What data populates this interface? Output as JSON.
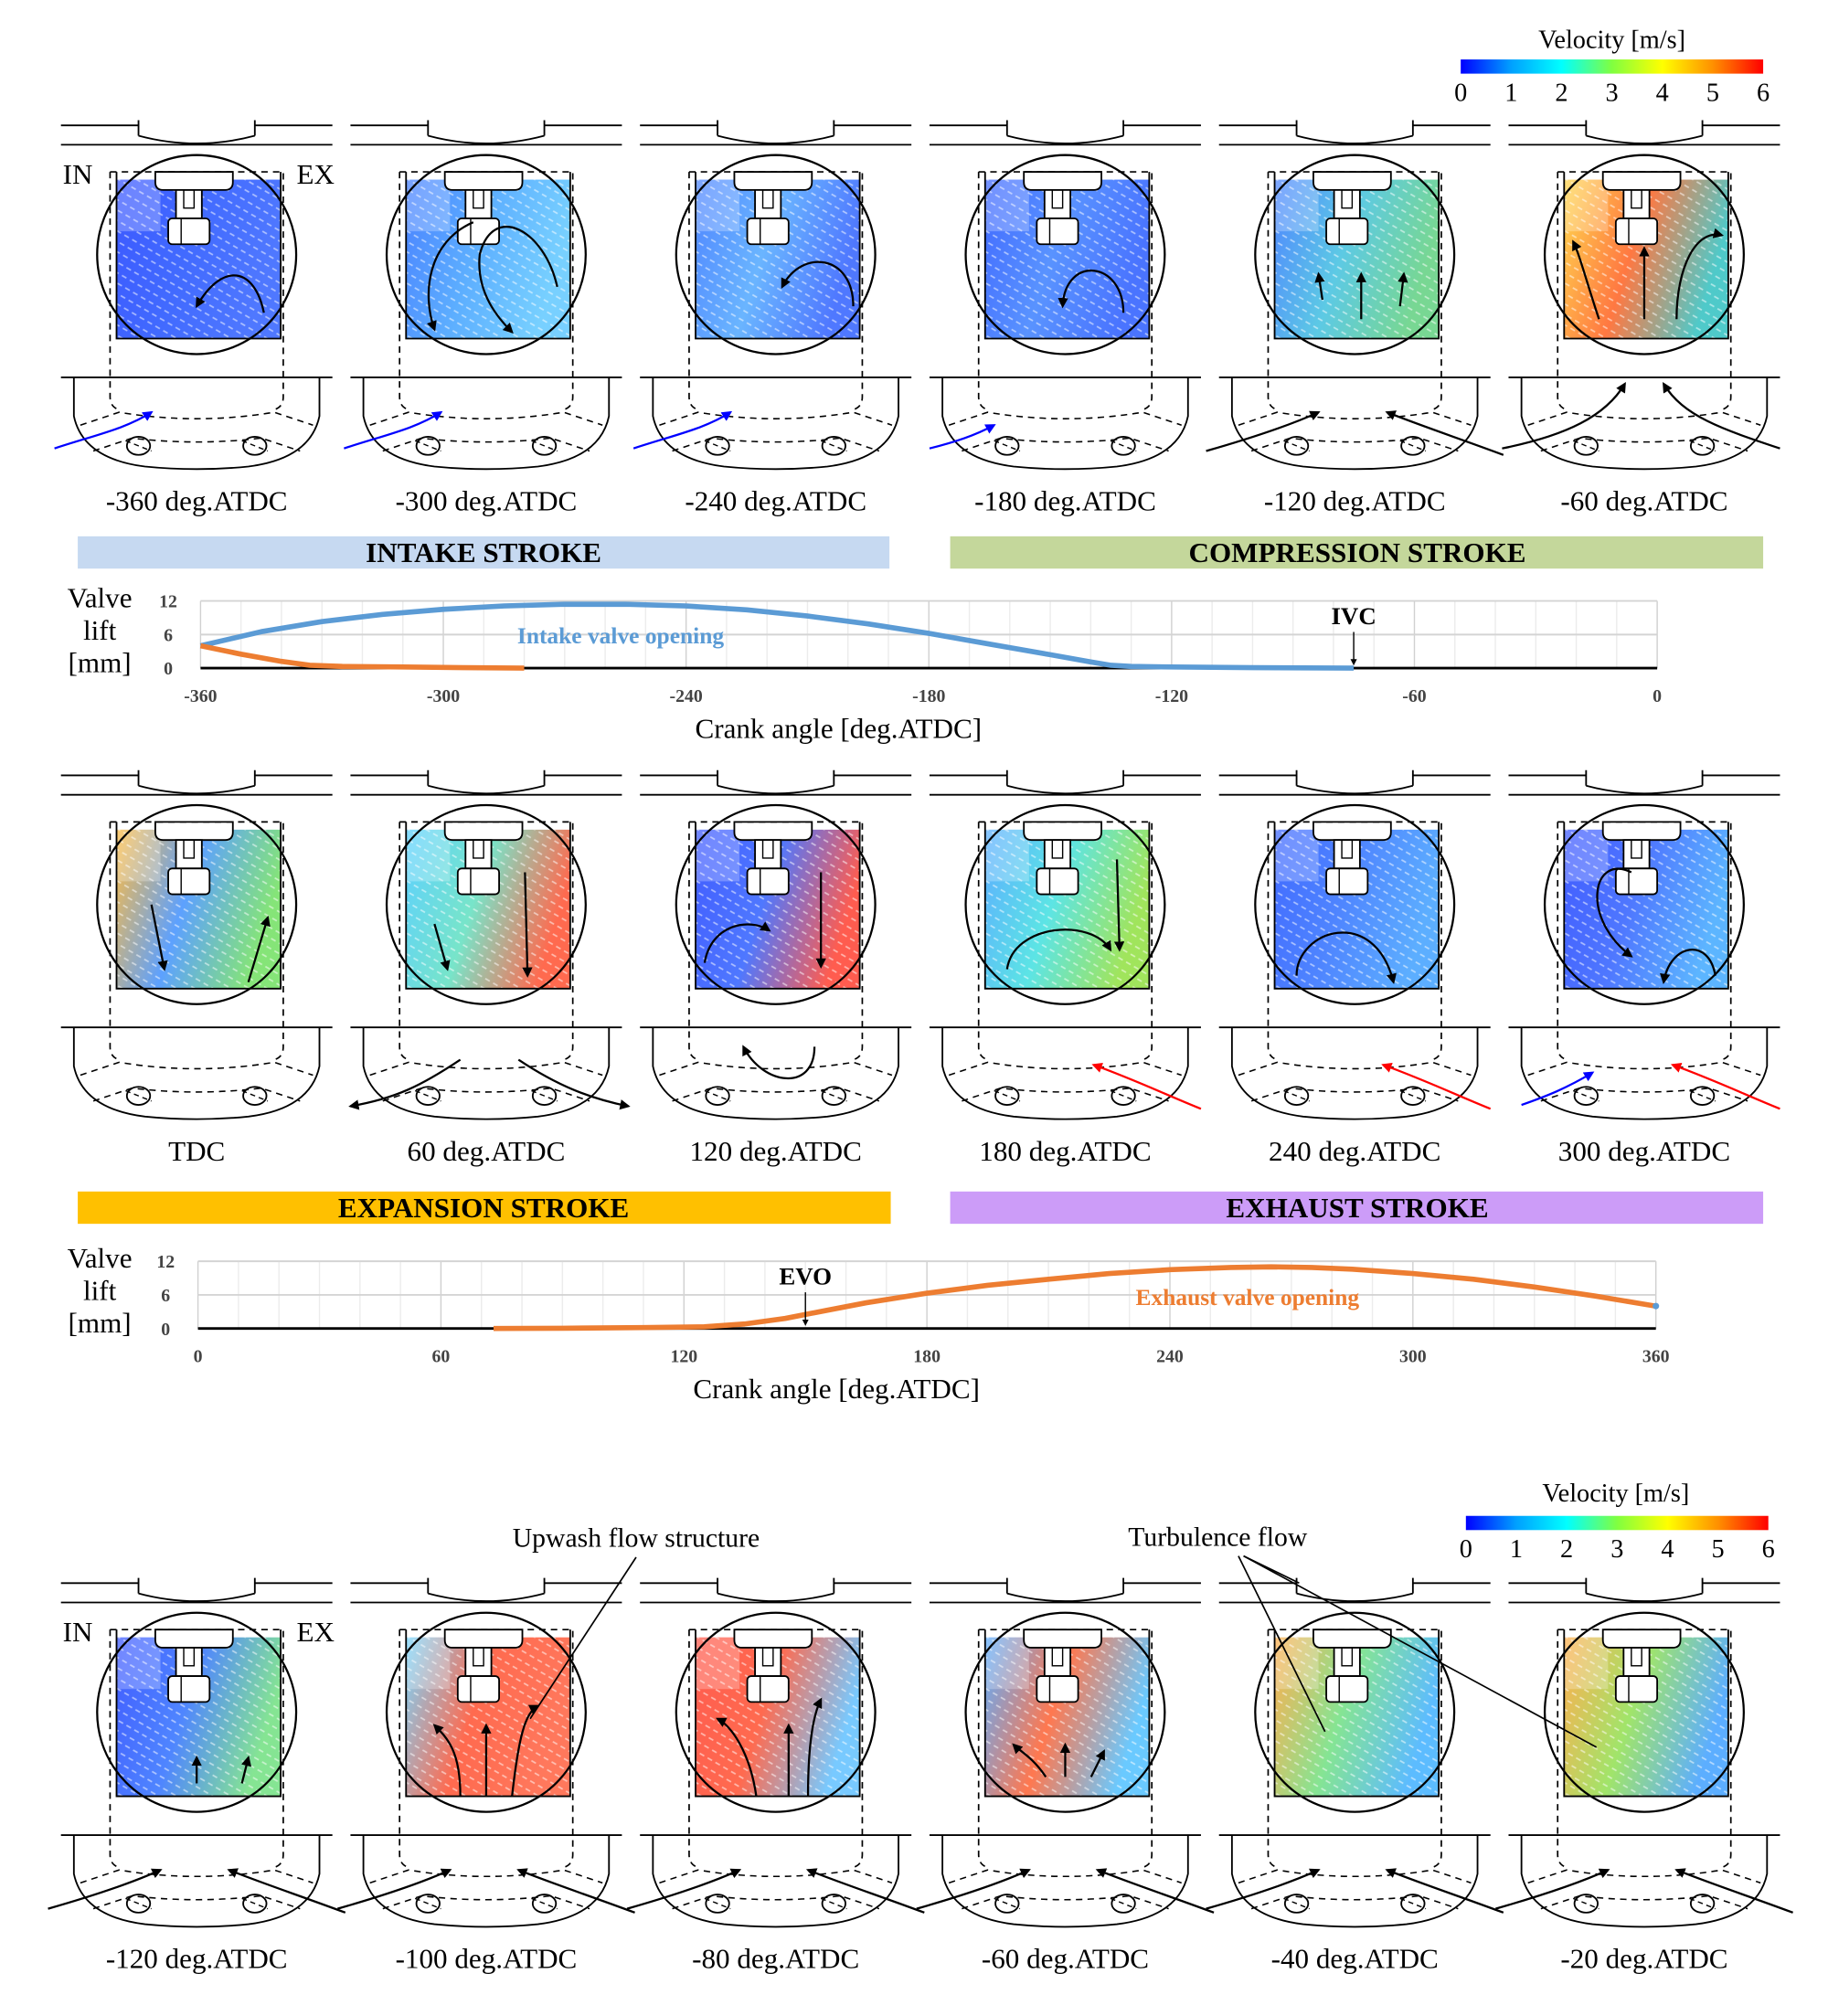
{
  "colorbars": [
    {
      "title": "Velocity  [m/s]",
      "ticks": [
        "0",
        "1",
        "2",
        "3",
        "4",
        "5",
        "6"
      ],
      "colormap": [
        "#0000ff",
        "#00a0ff",
        "#00ffff",
        "#80ff40",
        "#ffff00",
        "#ff9000",
        "#ff0000"
      ]
    },
    {
      "title": "Velocity  [m/s]",
      "ticks": [
        "0",
        "1",
        "2",
        "3",
        "4",
        "5",
        "6"
      ],
      "colormap": [
        "#0000ff",
        "#00a0ff",
        "#00ffff",
        "#80ff40",
        "#ffff00",
        "#ff9000",
        "#ff0000"
      ]
    }
  ],
  "port_labels": {
    "intake": "IN",
    "exhaust": "EX"
  },
  "panels": [
    {
      "label": "-360 deg.ATDC",
      "field_colors": [
        "#1a3cff",
        "#2050ff",
        "#3060ff"
      ]
    },
    {
      "label": "-300 deg.ATDC",
      "field_colors": [
        "#2a6cff",
        "#40a0ff",
        "#60c8ff"
      ]
    },
    {
      "label": "-240 deg.ATDC",
      "field_colors": [
        "#3070ff",
        "#50a8ff",
        "#3060ff"
      ]
    },
    {
      "label": "-180 deg.ATDC",
      "field_colors": [
        "#2050ff",
        "#3c80ff",
        "#2a5cff"
      ]
    },
    {
      "label": "-120 deg.ATDC",
      "field_colors": [
        "#3070ff",
        "#40c0e0",
        "#60d080"
      ]
    },
    {
      "label": "-60 deg.ATDC",
      "field_colors": [
        "#ffd030",
        "#ff6020",
        "#30c0c0"
      ]
    },
    {
      "label": "TDC",
      "field_colors": [
        "#ffb020",
        "#4090ff",
        "#70e060"
      ]
    },
    {
      "label": "60 deg.ATDC",
      "field_colors": [
        "#40c8ff",
        "#60e0c0",
        "#ff5030"
      ]
    },
    {
      "label": "120 deg.ATDC",
      "field_colors": [
        "#2040ff",
        "#3060ff",
        "#ff4030"
      ]
    },
    {
      "label": "180 deg.ATDC",
      "field_colors": [
        "#40a0ff",
        "#40e0e0",
        "#90e040"
      ]
    },
    {
      "label": "240 deg.ATDC",
      "field_colors": [
        "#2050ff",
        "#3070ff",
        "#40a0ff"
      ]
    },
    {
      "label": "300 deg.ATDC",
      "field_colors": [
        "#2040ff",
        "#3060ff",
        "#40a8ff"
      ]
    },
    {
      "label": "-120 deg.ATDC",
      "field_colors": [
        "#2040ff",
        "#3070ff",
        "#70e080"
      ]
    },
    {
      "label": "-100 deg.ATDC",
      "field_colors": [
        "#60d0ff",
        "#ff5030",
        "#ff6040"
      ]
    },
    {
      "label": "-80 deg.ATDC",
      "field_colors": [
        "#ff4030",
        "#ff5030",
        "#60c0ff"
      ]
    },
    {
      "label": "-60 deg.ATDC",
      "field_colors": [
        "#40a0ff",
        "#ff6030",
        "#50c0ff"
      ]
    },
    {
      "label": "-40 deg.ATDC",
      "field_colors": [
        "#ffa030",
        "#70e080",
        "#40b0ff"
      ]
    },
    {
      "label": "-20 deg.ATDC",
      "field_colors": [
        "#ffa030",
        "#90e050",
        "#40a0ff"
      ]
    }
  ],
  "strokes": [
    {
      "label": "INTAKE STROKE",
      "color": "#c6d9f1"
    },
    {
      "label": "COMPRESSION STROKE",
      "color": "#c4d79b"
    },
    {
      "label": "EXPANSION STROKE",
      "color": "#ffc000"
    },
    {
      "label": "EXHAUST STROKE",
      "color": "#cc9cf8"
    }
  ],
  "annotations": {
    "upwash": "Upwash flow structure",
    "turbulence": "Turbulence flow"
  },
  "chart_data": [
    {
      "type": "line",
      "ylabel": [
        "Valve",
        "lift",
        "[mm]"
      ],
      "xlabel": "Crank angle [deg.ATDC]",
      "xlim": [
        -360,
        0
      ],
      "ylim": [
        0,
        12
      ],
      "xticks": [
        "-360",
        "-300",
        "-240",
        "-180",
        "-120",
        "-60",
        "0"
      ],
      "yticks": [
        "0",
        "6",
        "12"
      ],
      "grid": true,
      "marker": {
        "label": "IVC",
        "x": -75
      },
      "series": [
        {
          "name": "Intake valve opening",
          "color": "#5b9bd5",
          "x": [
            -360,
            -345,
            -330,
            -315,
            -300,
            -285,
            -270,
            -255,
            -240,
            -225,
            -210,
            -195,
            -180,
            -165,
            -150,
            -140,
            -135,
            -130,
            -120,
            -100,
            -75
          ],
          "y": [
            4,
            6.5,
            8.3,
            9.6,
            10.5,
            11.1,
            11.4,
            11.4,
            11.1,
            10.4,
            9.3,
            7.9,
            6.2,
            4.3,
            2.4,
            1.1,
            0.5,
            0.3,
            0.2,
            0.1,
            0
          ]
        },
        {
          "color": "#ed7d31",
          "x": [
            -360,
            -350,
            -340,
            -333,
            -325,
            -310,
            -295,
            -280
          ],
          "y": [
            4,
            2.5,
            1.2,
            0.5,
            0.3,
            0.2,
            0.1,
            0
          ]
        }
      ]
    },
    {
      "type": "line",
      "ylabel": [
        "Valve",
        "lift",
        "[mm]"
      ],
      "xlabel": "Crank angle [deg.ATDC]",
      "xlim": [
        0,
        360
      ],
      "ylim": [
        0,
        12
      ],
      "xticks": [
        "0",
        "60",
        "120",
        "180",
        "240",
        "300",
        "360"
      ],
      "yticks": [
        "0",
        "6",
        "12"
      ],
      "grid": true,
      "marker": {
        "label": "EVO",
        "x": 150
      },
      "series": [
        {
          "name": "Exhaust valve opening",
          "color": "#ed7d31",
          "x": [
            73,
            90,
            110,
            125,
            135,
            145,
            155,
            165,
            180,
            195,
            210,
            225,
            240,
            255,
            265,
            275,
            285,
            300,
            315,
            330,
            345,
            360
          ],
          "y": [
            0,
            0.05,
            0.15,
            0.3,
            0.8,
            1.8,
            3.2,
            4.6,
            6.3,
            7.7,
            8.8,
            9.8,
            10.5,
            10.9,
            11,
            10.9,
            10.6,
            9.8,
            8.8,
            7.4,
            5.8,
            4
          ]
        },
        {
          "color": "#5b9bd5",
          "x": [
            360
          ],
          "y": [
            4
          ]
        }
      ]
    }
  ]
}
